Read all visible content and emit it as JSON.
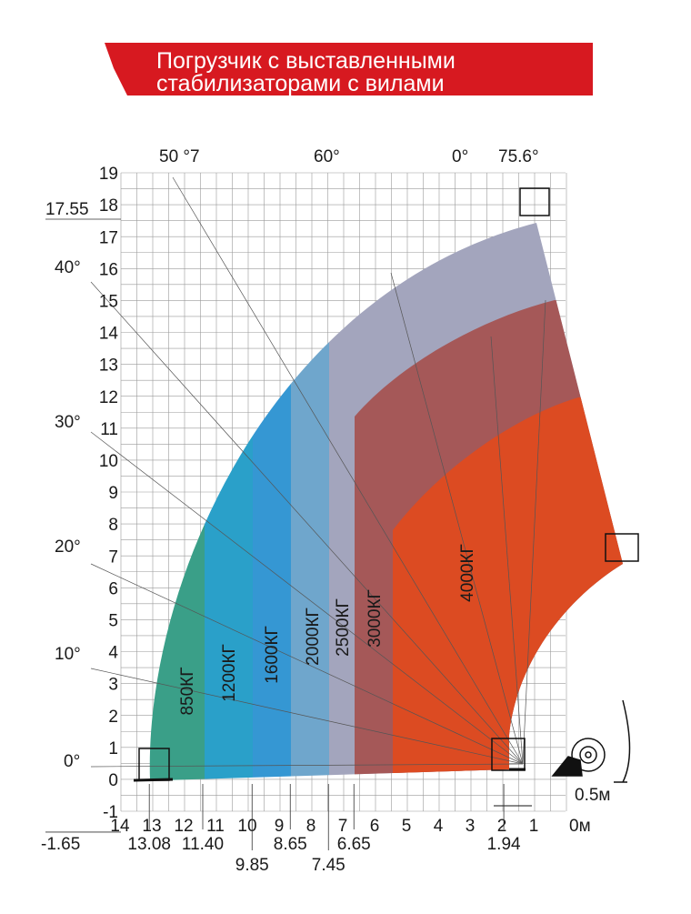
{
  "header": {
    "title_lines": [
      "Погрузчик с выставленными",
      "стабилизаторами с вилами"
    ]
  },
  "y_axis": {
    "ticks": [
      -1,
      0,
      1,
      2,
      3,
      4,
      5,
      6,
      7,
      8,
      9,
      10,
      11,
      12,
      13,
      14,
      15,
      16,
      17,
      18,
      19
    ],
    "markers": [
      {
        "value": 17.55,
        "label": "17.55"
      },
      {
        "value": -1.65,
        "label": "-1.65"
      }
    ]
  },
  "x_axis": {
    "ticks": [
      14,
      13,
      12,
      11,
      10,
      9,
      8,
      7,
      6,
      5,
      4,
      3,
      2,
      1,
      {
        "value": 0,
        "label": "0м"
      }
    ],
    "markers": [
      {
        "value": 13.08,
        "label": "13.08"
      },
      {
        "value": 11.4,
        "label": "11.40"
      },
      {
        "value": 9.85,
        "label": "9.85"
      },
      {
        "value": 8.65,
        "label": "8.65"
      },
      {
        "value": 7.45,
        "label": "7.45"
      },
      {
        "value": 6.65,
        "label": "6.65"
      },
      {
        "value": 1.94,
        "label": "1.94"
      }
    ]
  },
  "angles": [
    "50 °7",
    "60°",
    "0°",
    "75.6°",
    "40°",
    "30°",
    "20°",
    "10°",
    "0°"
  ],
  "loads": [
    "850КГ",
    "1200КГ",
    "1600КГ",
    "2000КГ",
    "2500КГ",
    "3000КГ",
    "4000КГ"
  ],
  "scale_label": "0.5м"
}
